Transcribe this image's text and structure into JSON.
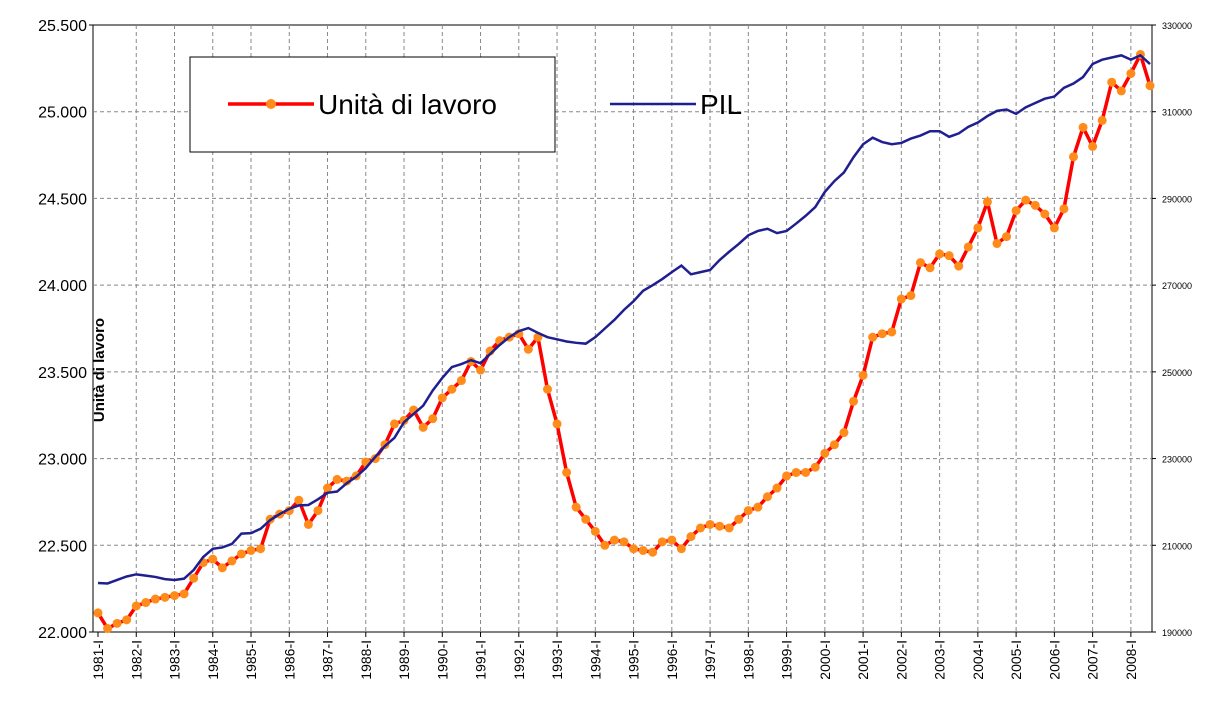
{
  "chart_data": {
    "type": "line",
    "y_label": "Unità di lavoro",
    "categories": [
      "1981-I",
      null,
      null,
      null,
      "1982-I",
      null,
      null,
      null,
      "1983-I",
      null,
      null,
      null,
      "1984-I",
      null,
      null,
      null,
      "1985-I",
      null,
      null,
      null,
      "1986-I",
      null,
      null,
      null,
      "1987-I",
      null,
      null,
      null,
      "1988-I",
      null,
      null,
      null,
      "1989-I",
      null,
      null,
      null,
      "1990-I",
      null,
      null,
      null,
      "1991-I",
      null,
      null,
      null,
      "1992-I",
      null,
      null,
      null,
      "1993-I",
      null,
      null,
      null,
      "1994-I",
      null,
      null,
      null,
      "1995-I",
      null,
      null,
      null,
      "1996-I",
      null,
      null,
      null,
      "1997-I",
      null,
      null,
      null,
      "1998-I",
      null,
      null,
      null,
      "1999-I",
      null,
      null,
      null,
      "2000-I",
      null,
      null,
      null,
      "2001-I",
      null,
      null,
      null,
      "2002-I",
      null,
      null,
      null,
      "2003-I",
      null,
      null,
      null,
      "2004-I",
      null,
      null,
      null,
      "2005-I",
      null,
      null,
      null,
      "2006-I",
      null,
      null,
      null,
      "2007-I",
      null,
      null,
      null,
      "2008-I",
      null,
      null
    ],
    "series": [
      {
        "name": "Unità di lavoro",
        "color": "#ff0000",
        "marker_color": "#ff8c1a",
        "axis": "y",
        "values": [
          22110,
          22020,
          22050,
          22070,
          22150,
          22170,
          22190,
          22200,
          22210,
          22220,
          22310,
          22400,
          22420,
          22370,
          22410,
          22450,
          22470,
          22480,
          22650,
          22680,
          22700,
          22760,
          22620,
          22700,
          22830,
          22880,
          22870,
          22900,
          22980,
          23000,
          23080,
          23200,
          23220,
          23280,
          23180,
          23230,
          23350,
          23400,
          23450,
          23560,
          23510,
          23620,
          23680,
          23700,
          23720,
          23630,
          23700,
          23400,
          23200,
          22920,
          22720,
          22650,
          22580,
          22500,
          22530,
          22520,
          22480,
          22470,
          22460,
          22520,
          22530,
          22480,
          22550,
          22600,
          22620,
          22610,
          22600,
          22650,
          22700,
          22720,
          22780,
          22830,
          22900,
          22920,
          22920,
          22950,
          23030,
          23080,
          23150,
          23330,
          23480,
          23700,
          23720,
          23730,
          23920,
          23940,
          24130,
          24100,
          24180,
          24170,
          24110,
          24220,
          24330,
          24480,
          24240,
          24280,
          24430,
          24490,
          24460,
          24410,
          24330,
          24440,
          24740,
          24910,
          24800,
          24950,
          25170,
          25120,
          25220,
          25330,
          25150
        ]
      },
      {
        "name": "PIL",
        "color": "#1f1f8f",
        "axis": "y2",
        "values": [
          201300,
          201200,
          202000,
          202800,
          203300,
          203000,
          202700,
          202200,
          202000,
          202300,
          204300,
          207300,
          209200,
          209500,
          210300,
          212700,
          212800,
          213800,
          215800,
          217200,
          218400,
          219200,
          219300,
          220600,
          222100,
          222400,
          224300,
          225800,
          227800,
          230400,
          232900,
          234800,
          238400,
          240300,
          242200,
          245700,
          248600,
          251100,
          251800,
          252700,
          252000,
          254100,
          256200,
          258000,
          259400,
          260100,
          259000,
          258000,
          257500,
          257000,
          256700,
          256500,
          258000,
          260000,
          262000,
          264300,
          266300,
          268700,
          270000,
          271400,
          273000,
          274500,
          272500,
          273000,
          273500,
          275800,
          277700,
          279500,
          281500,
          282500,
          283000,
          282000,
          282500,
          284200,
          286000,
          288000,
          291500,
          294000,
          296000,
          299500,
          302500,
          304000,
          303000,
          302500,
          302800,
          303800,
          304500,
          305500,
          305500,
          304200,
          305000,
          306500,
          307500,
          309000,
          310200,
          310500,
          309500,
          311000,
          312000,
          313000,
          313500,
          315500,
          316500,
          318000,
          321000,
          322000,
          322500,
          323000,
          322000,
          323000,
          321000
        ]
      }
    ],
    "ylim": [
      22000,
      25500
    ],
    "yticks": [
      {
        "value": 22000,
        "label": "22.000"
      },
      {
        "value": 22500,
        "label": "22.500"
      },
      {
        "value": 23000,
        "label": "23.000"
      },
      {
        "value": 23500,
        "label": "23.500"
      },
      {
        "value": 24000,
        "label": "24.000"
      },
      {
        "value": 24500,
        "label": "24.500"
      },
      {
        "value": 25000,
        "label": "25.000"
      },
      {
        "value": 25500,
        "label": "25.500"
      }
    ],
    "y2lim": [
      190000,
      330000
    ],
    "y2ticks": [
      190000,
      210000,
      230000,
      250000,
      270000,
      290000,
      310000,
      330000
    ],
    "grid": true
  }
}
